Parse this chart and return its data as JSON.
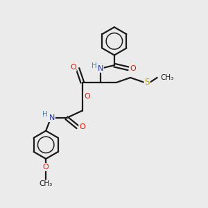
{
  "background_color": "#ebebeb",
  "bond_color": "#1a1a1a",
  "atom_colors": {
    "O": "#ee1100",
    "N": "#2233bb",
    "S": "#bbaa00",
    "H": "#4488aa",
    "C": "#1a1a1a"
  },
  "figsize": [
    3.0,
    3.0
  ],
  "dpi": 100,
  "bond_lw": 1.6,
  "font_size": 7.5
}
